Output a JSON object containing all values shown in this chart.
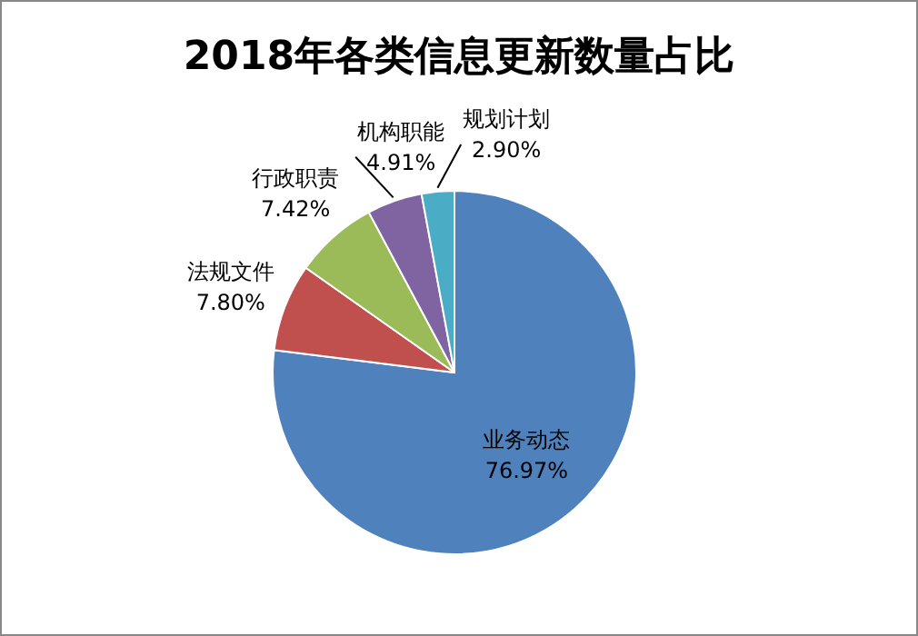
{
  "chart_data": {
    "type": "pie",
    "title": "2018年各类信息更新数量占比",
    "categories": [
      "业务动态",
      "法规文件",
      "行政职责",
      "机构职能",
      "规划计划"
    ],
    "values": [
      76.97,
      7.8,
      7.42,
      4.91,
      2.9
    ],
    "value_labels": [
      "76.97%",
      "7.80%",
      "7.42%",
      "4.91%",
      "2.90%"
    ],
    "colors": [
      "#4f81bd",
      "#c0504d",
      "#9bbb59",
      "#8064a2",
      "#4bacc6"
    ],
    "legend": false
  }
}
